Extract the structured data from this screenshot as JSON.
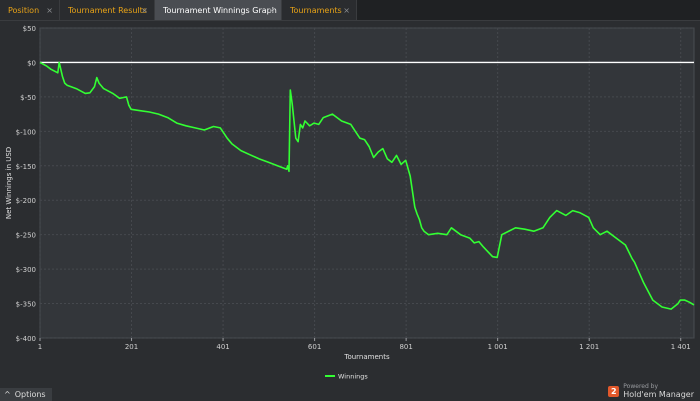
{
  "tabs": [
    {
      "label": "Position",
      "close": "×"
    },
    {
      "label": "Tournament Results",
      "close": "×"
    },
    {
      "label": "Tournament Winnings Graph",
      "close": "×"
    },
    {
      "label": "Tournaments",
      "close": "×"
    }
  ],
  "footer": {
    "options_label": "Options",
    "options_icon": "^",
    "powered_by": "Powered by",
    "brand_name": "Hold'em Manager",
    "brand_logo": "2"
  },
  "chart_data": {
    "type": "line",
    "title": "",
    "xlabel": "Tournaments",
    "ylabel": "Net Winnings in USD",
    "xlim": [
      1,
      1430
    ],
    "ylim": [
      -400,
      50
    ],
    "x_ticks": [
      1,
      201,
      401,
      601,
      801,
      1001,
      1201,
      1401
    ],
    "x_tick_labels": [
      "1",
      "201",
      "401",
      "601",
      "801",
      "1 001",
      "1 201",
      "1 401"
    ],
    "y_ticks": [
      50,
      0,
      -50,
      -100,
      -150,
      -200,
      -250,
      -300,
      -350,
      -400
    ],
    "y_tick_labels": [
      "$50",
      "$0",
      "$-50",
      "$-100",
      "$-150",
      "$-200",
      "$-250",
      "$-300",
      "$-350",
      "$-400"
    ],
    "grid": true,
    "legend": "bottom-center",
    "zero_line_color": "#ffffff",
    "series": [
      {
        "name": "Winnings",
        "color": "#33ff33",
        "x": [
          1,
          15,
          25,
          40,
          43,
          50,
          55,
          60,
          80,
          100,
          110,
          120,
          125,
          130,
          140,
          160,
          175,
          190,
          195,
          200,
          220,
          240,
          260,
          280,
          300,
          320,
          340,
          360,
          380,
          395,
          400,
          410,
          420,
          440,
          460,
          480,
          500,
          520,
          540,
          542,
          545,
          548,
          552,
          560,
          565,
          570,
          575,
          580,
          590,
          600,
          610,
          620,
          640,
          660,
          680,
          690,
          700,
          710,
          720,
          730,
          740,
          750,
          760,
          770,
          780,
          790,
          800,
          810,
          820,
          825,
          830,
          835,
          840,
          850,
          870,
          890,
          900,
          920,
          940,
          950,
          960,
          970,
          980,
          990,
          1000,
          1010,
          1040,
          1060,
          1080,
          1100,
          1115,
          1130,
          1150,
          1165,
          1180,
          1200,
          1210,
          1225,
          1240,
          1260,
          1280,
          1295,
          1300,
          1320,
          1340,
          1360,
          1380,
          1395,
          1400,
          1410,
          1420,
          1430
        ],
        "y": [
          0,
          -5,
          -10,
          -15,
          0,
          -20,
          -30,
          -33,
          -38,
          -45,
          -44,
          -35,
          -22,
          -30,
          -38,
          -45,
          -52,
          -50,
          -62,
          -68,
          -70,
          -72,
          -75,
          -80,
          -88,
          -92,
          -95,
          -98,
          -93,
          -95,
          -100,
          -110,
          -118,
          -128,
          -134,
          -140,
          -145,
          -150,
          -155,
          -150,
          -158,
          -40,
          -60,
          -110,
          -115,
          -90,
          -95,
          -85,
          -92,
          -88,
          -90,
          -80,
          -75,
          -85,
          -90,
          -100,
          -110,
          -112,
          -122,
          -138,
          -130,
          -125,
          -140,
          -145,
          -135,
          -148,
          -142,
          -165,
          -210,
          -220,
          -228,
          -240,
          -245,
          -250,
          -248,
          -250,
          -240,
          -250,
          -255,
          -262,
          -260,
          -268,
          -275,
          -282,
          -283,
          -250,
          -240,
          -242,
          -245,
          -240,
          -225,
          -215,
          -222,
          -215,
          -218,
          -225,
          -240,
          -250,
          -245,
          -255,
          -265,
          -285,
          -290,
          -320,
          -345,
          -355,
          -358,
          -350,
          -345,
          -345,
          -348,
          -352
        ]
      }
    ]
  }
}
